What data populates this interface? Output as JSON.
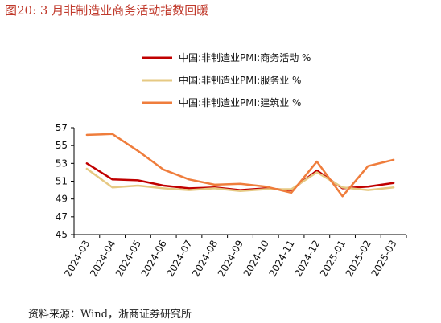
{
  "figure": {
    "title": "图20:   3 月非制造业商务活动指数回暖",
    "source": "资料来源：Wind，浙商证券研究所"
  },
  "chart_data": {
    "type": "line",
    "categories": [
      "2024-03",
      "2024-04",
      "2024-05",
      "2024-06",
      "2024-07",
      "2024-08",
      "2024-09",
      "2024-10",
      "2024-11",
      "2024-12",
      "2025-01",
      "2025-02",
      "2025-03"
    ],
    "ylim": [
      45,
      57
    ],
    "yticks": [
      45,
      47,
      49,
      51,
      53,
      55,
      57
    ],
    "grid": false,
    "legend_position": "top",
    "series": [
      {
        "name": "中国:非制造业PMI:商务活动 %",
        "color": "#c00000",
        "values": [
          53.0,
          51.2,
          51.1,
          50.5,
          50.2,
          50.3,
          50.0,
          50.2,
          50.0,
          52.2,
          50.2,
          50.4,
          50.8
        ]
      },
      {
        "name": "中国:非制造业PMI:服务业 %",
        "color": "#e6c983",
        "values": [
          52.4,
          50.3,
          50.5,
          50.2,
          50.0,
          50.2,
          49.9,
          50.1,
          50.1,
          52.0,
          50.3,
          50.0,
          50.3
        ]
      },
      {
        "name": "中国:非制造业PMI:建筑业 %",
        "color": "#ef7d3c",
        "values": [
          56.2,
          56.3,
          54.4,
          52.3,
          51.2,
          50.6,
          50.7,
          50.4,
          49.7,
          53.2,
          49.3,
          52.7,
          53.4
        ]
      }
    ]
  }
}
